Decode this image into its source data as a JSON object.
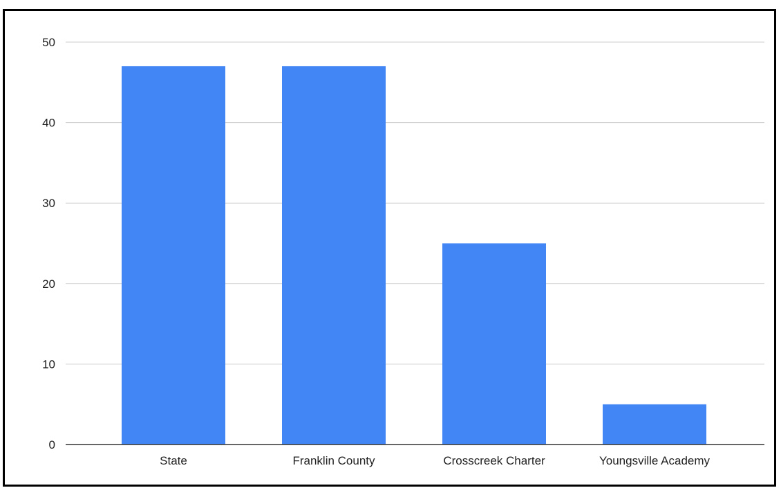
{
  "chart_data": {
    "type": "bar",
    "title": "",
    "xlabel": "",
    "ylabel": "",
    "categories": [
      "State",
      "Franklin County",
      "Crosscreek Charter",
      "Youngsville Academy"
    ],
    "values": [
      47,
      47,
      25,
      5
    ],
    "ylim": [
      0,
      50
    ],
    "yticks": [
      "0",
      "10",
      "20",
      "30",
      "40",
      "50"
    ],
    "grid": true,
    "legend": "none",
    "colors": {
      "bar": "#4285f4",
      "grid": "#cccccc",
      "axis": "#333333",
      "frame": "#000000"
    }
  }
}
